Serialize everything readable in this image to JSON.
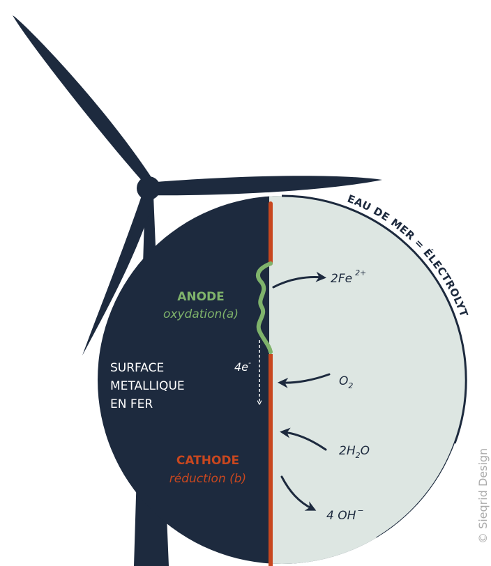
{
  "electrolyte": "EAU DE MER = ÉLECTROLYTE",
  "anode": {
    "title": "ANODE",
    "subtitle": "oxydation(a)"
  },
  "cathode": {
    "title": "CATHODE",
    "subtitle": "réduction (b)"
  },
  "surface": [
    "SURFACE",
    "METALLIQUE",
    "EN FER"
  ],
  "electrons": {
    "main": "4e",
    "sup": "-"
  },
  "iron": {
    "main": "2Fe",
    "sup": "2+"
  },
  "oxygen": {
    "main": "O",
    "sub": "2"
  },
  "water": {
    "a": "2H",
    "sub": "2",
    "b": "O"
  },
  "hydroxide": {
    "main": "4 OH",
    "sup": "−"
  },
  "credit": "© Sieqrid Design"
}
